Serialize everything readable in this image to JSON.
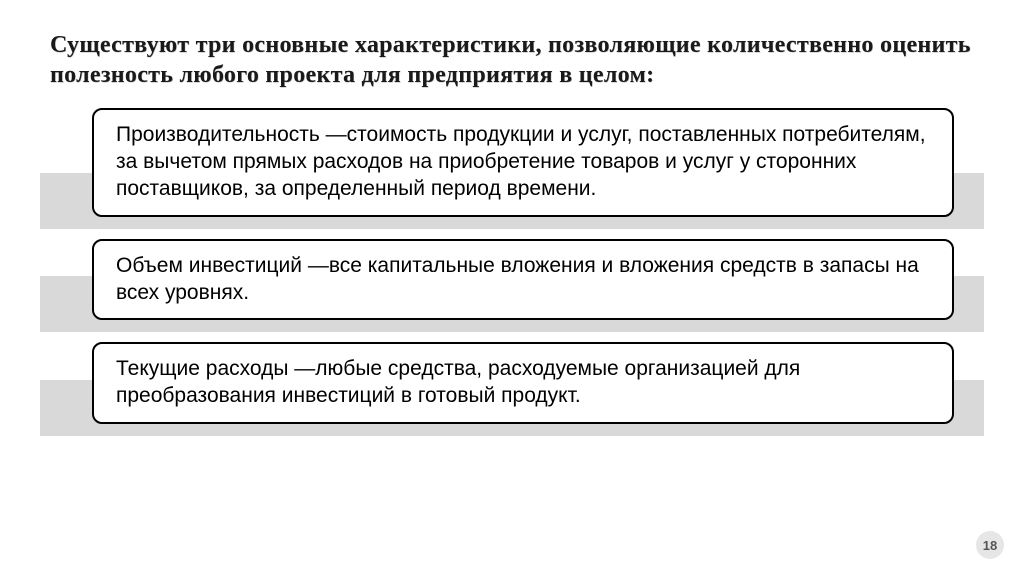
{
  "title": "Существуют три основные характеристики, позволяющие количественно оценить полезность любого проекта для предприятия в целом:",
  "blocks": [
    {
      "text": "Производительность —стоимость продукции и услуг, поставленных потребителям, за вычетом прямых расходов на приобретение товаров и услуг у сторонних поставщиков, за определенный период времени."
    },
    {
      "text": "Объем инвестиций —все капитальные вложения и вложения средств в запасы на всех уровнях."
    },
    {
      "text": "Текущие расходы —любые средства, расходуемые организацией для преобразования инвестиций в готовый продукт."
    }
  ],
  "pageNumber": "18",
  "colors": {
    "background": "#ffffff",
    "barBackground": "#d9d9d9",
    "boxBorder": "#000000",
    "textColor": "#000000",
    "pageNumBg": "#e6e6e6"
  }
}
